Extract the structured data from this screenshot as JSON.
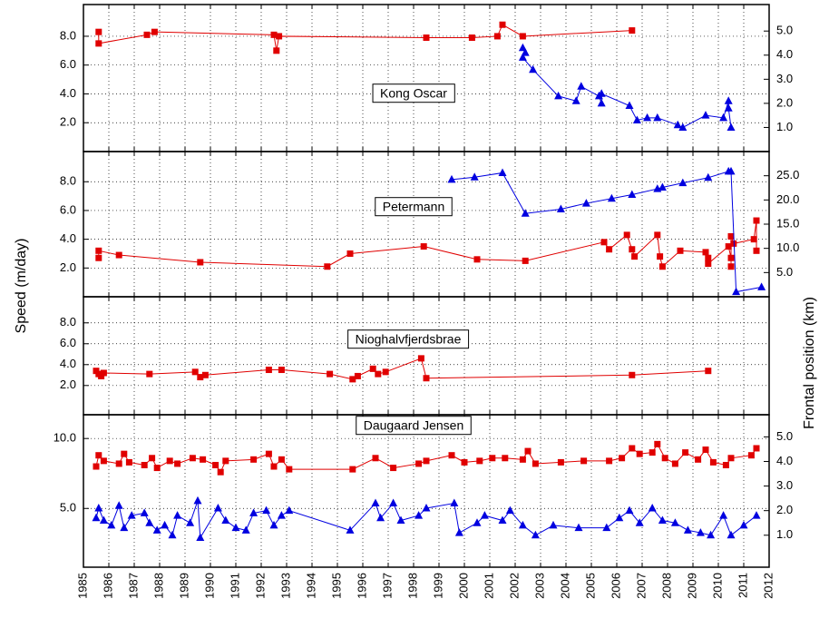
{
  "chart_data": {
    "type": "line",
    "ylabel": "Speed (m/day)",
    "y2label": "Frontal position (km)",
    "xlim": [
      1985,
      2012
    ],
    "xticks": [
      1985,
      1986,
      1987,
      1988,
      1989,
      1990,
      1991,
      1992,
      1993,
      1994,
      1995,
      1996,
      1997,
      1998,
      1999,
      2000,
      2001,
      2002,
      2003,
      2004,
      2005,
      2006,
      2007,
      2008,
      2009,
      2010,
      2011,
      2012
    ],
    "grid": true,
    "panels": [
      {
        "label": "Kong Oscar",
        "ylim": [
          0,
          10.2
        ],
        "yticks": [
          {
            "value": 2,
            "label": "2.0"
          },
          {
            "value": 4,
            "label": "4.0"
          },
          {
            "value": 6,
            "label": "6.0"
          },
          {
            "value": 8,
            "label": "8.0"
          }
        ],
        "y2lim": [
          0,
          6.1
        ],
        "y2ticks": [
          {
            "value": 1,
            "label": "1.0"
          },
          {
            "value": 2,
            "label": "2.0"
          },
          {
            "value": 3,
            "label": "3.0"
          },
          {
            "value": 4,
            "label": "4.0"
          },
          {
            "value": 5,
            "label": "5.0"
          }
        ],
        "series": [
          {
            "color": "#e00000",
            "marker": "square",
            "x": [
              1985.6,
              1985.6,
              1987.5,
              1987.8,
              1992.5,
              1992.6,
              1992.7,
              1998.5,
              2000.3,
              2001.3,
              2001.5,
              2002.3,
              2006.6
            ],
            "values": [
              8.3,
              7.5,
              8.1,
              8.3,
              8.1,
              7.0,
              8.0,
              7.9,
              7.9,
              8.0,
              8.8,
              8.0,
              8.4
            ]
          },
          {
            "color": "#0000e0",
            "marker": "triangle",
            "axis": "y2",
            "x": [
              2002.3,
              2002.4,
              2002.3,
              2002.7,
              2003.7,
              2004.4,
              2004.6,
              2005.3,
              2005.4,
              2005.4,
              2006.5,
              2006.8,
              2007.2,
              2007.6,
              2008.4,
              2008.6,
              2009.5,
              2010.2,
              2010.4,
              2010.4,
              2010.5
            ],
            "values": [
              4.3,
              4.1,
              3.9,
              3.4,
              2.3,
              2.1,
              2.7,
              2.3,
              2.0,
              2.4,
              1.9,
              1.3,
              1.4,
              1.4,
              1.1,
              1.0,
              1.5,
              1.4,
              2.1,
              1.8,
              1.0
            ]
          }
        ]
      },
      {
        "label": "Petermann",
        "ylim": [
          0,
          10.1
        ],
        "yticks": [
          {
            "value": 2,
            "label": "2.0"
          },
          {
            "value": 4,
            "label": "4.0"
          },
          {
            "value": 6,
            "label": "6.0"
          },
          {
            "value": 8,
            "label": "8.0"
          }
        ],
        "y2lim": [
          0,
          30
        ],
        "y2ticks": [
          {
            "value": 5,
            "label": "5.0"
          },
          {
            "value": 10,
            "label": "10.0"
          },
          {
            "value": 15,
            "label": "15.0"
          },
          {
            "value": 20,
            "label": "20.0"
          },
          {
            "value": 25,
            "label": "25.0"
          }
        ],
        "series": [
          {
            "color": "#e00000",
            "marker": "square",
            "x": [
              1985.6,
              1985.6,
              1986.4,
              1989.6,
              1994.6,
              1995.5,
              1998.4,
              2000.5,
              2002.4,
              2005.5,
              2005.7,
              2006.4,
              2006.6,
              2006.7,
              2007.6,
              2007.7,
              2007.8,
              2008.5,
              2009.5,
              2009.6,
              2009.6,
              2010.4,
              2010.5,
              2010.5,
              2010.5,
              2010.6,
              2011.4,
              2011.5,
              2011.5
            ],
            "values": [
              2.7,
              3.2,
              2.9,
              2.4,
              2.1,
              3.0,
              3.5,
              2.6,
              2.5,
              3.8,
              3.3,
              4.3,
              3.3,
              2.8,
              4.3,
              2.8,
              2.1,
              3.2,
              3.1,
              2.7,
              2.3,
              3.5,
              2.7,
              2.1,
              4.2,
              3.7,
              4.0,
              5.3,
              3.2
            ]
          },
          {
            "color": "#0000e0",
            "marker": "triangle",
            "axis": "y2",
            "x": [
              1999.5,
              2000.4,
              2001.5,
              2002.4,
              2003.8,
              2004.8,
              2005.8,
              2006.6,
              2007.6,
              2007.8,
              2008.6,
              2009.6,
              2010.4,
              2010.5,
              2010.7,
              2011.7
            ],
            "values": [
              24.2,
              24.7,
              25.6,
              17.2,
              18.1,
              19.3,
              20.3,
              21.1,
              22.3,
              22.6,
              23.5,
              24.6,
              25.9,
              25.9,
              1.0,
              2.0
            ]
          }
        ]
      },
      {
        "label": "Nioghalvfjerdsbrae",
        "ylim": [
          -0.8,
          10.5
        ],
        "yticks": [
          {
            "value": 2,
            "label": "2.0"
          },
          {
            "value": 4,
            "label": "4.0"
          },
          {
            "value": 6,
            "label": "6.0"
          },
          {
            "value": 8,
            "label": "8.0"
          }
        ],
        "series": [
          {
            "color": "#e00000",
            "marker": "square",
            "x": [
              1985.5,
              1985.6,
              1985.7,
              1985.8,
              1987.6,
              1989.4,
              1989.6,
              1989.8,
              1992.3,
              1992.8,
              1994.7,
              1995.6,
              1995.8,
              1996.4,
              1996.6,
              1996.9,
              1998.3,
              1998.5,
              2006.6,
              2009.6
            ],
            "values": [
              3.4,
              3.1,
              2.9,
              3.2,
              3.1,
              3.3,
              2.8,
              3.0,
              3.5,
              3.5,
              3.1,
              2.6,
              2.9,
              3.6,
              3.1,
              3.3,
              4.6,
              2.7,
              3.0,
              3.4
            ]
          }
        ]
      },
      {
        "label": "Daugaard Jensen",
        "ylim": [
          0.8,
          11.7
        ],
        "yticks": [
          {
            "value": 5,
            "label": "5.0"
          },
          {
            "value": 10,
            "label": "10.0"
          }
        ],
        "y2lim": [
          -0.3,
          5.9
        ],
        "y2ticks": [
          {
            "value": 1,
            "label": "1.0"
          },
          {
            "value": 2,
            "label": "2.0"
          },
          {
            "value": 3,
            "label": "3.0"
          },
          {
            "value": 4,
            "label": "4.0"
          },
          {
            "value": 5,
            "label": "5.0"
          }
        ],
        "series": [
          {
            "color": "#e00000",
            "marker": "square",
            "x": [
              1985.5,
              1985.6,
              1985.8,
              1986.4,
              1986.6,
              1986.8,
              1987.4,
              1987.7,
              1987.9,
              1988.4,
              1988.7,
              1989.3,
              1989.7,
              1990.2,
              1990.4,
              1990.6,
              1991.7,
              1992.3,
              1992.5,
              1992.8,
              1993.1,
              1995.6,
              1996.5,
              1997.2,
              1998.2,
              1998.5,
              1999.5,
              2000.0,
              2000.6,
              2001.1,
              2001.6,
              2002.3,
              2002.5,
              2002.8,
              2003.8,
              2004.7,
              2005.7,
              2006.2,
              2006.6,
              2006.9,
              2007.4,
              2007.6,
              2007.9,
              2008.3,
              2008.7,
              2009.2,
              2009.5,
              2009.8,
              2010.3,
              2010.5,
              2011.3,
              2011.5
            ],
            "values": [
              8.0,
              8.8,
              8.4,
              8.2,
              8.9,
              8.3,
              8.1,
              8.6,
              7.9,
              8.4,
              8.2,
              8.6,
              8.5,
              8.1,
              7.6,
              8.4,
              8.5,
              8.9,
              8.0,
              8.5,
              7.8,
              7.8,
              8.6,
              7.9,
              8.2,
              8.4,
              8.8,
              8.3,
              8.4,
              8.6,
              8.6,
              8.5,
              9.1,
              8.2,
              8.3,
              8.4,
              8.4,
              8.6,
              9.3,
              8.9,
              9.0,
              9.6,
              8.6,
              8.2,
              9.0,
              8.5,
              9.2,
              8.3,
              8.1,
              8.6,
              8.8,
              9.3
            ]
          },
          {
            "color": "#0000e0",
            "marker": "triangle",
            "axis": "y2",
            "x": [
              1985.5,
              1985.6,
              1985.8,
              1986.1,
              1986.4,
              1986.6,
              1986.9,
              1987.4,
              1987.6,
              1987.9,
              1988.2,
              1988.5,
              1988.7,
              1989.2,
              1989.5,
              1989.6,
              1990.3,
              1990.6,
              1991.0,
              1991.4,
              1991.7,
              1992.2,
              1992.5,
              1992.8,
              1993.1,
              1995.5,
              1996.5,
              1996.7,
              1997.2,
              1997.5,
              1998.2,
              1998.5,
              1999.6,
              1999.8,
              2000.5,
              2000.8,
              2001.5,
              2001.8,
              2002.3,
              2002.8,
              2003.5,
              2004.5,
              2005.6,
              2006.1,
              2006.5,
              2006.9,
              2007.4,
              2007.8,
              2008.3,
              2008.8,
              2009.3,
              2009.7,
              2010.2,
              2010.5,
              2011.0,
              2011.5
            ],
            "values": [
              1.7,
              2.1,
              1.6,
              1.4,
              2.2,
              1.3,
              1.8,
              1.9,
              1.5,
              1.2,
              1.4,
              1.0,
              1.8,
              1.5,
              2.4,
              0.9,
              2.1,
              1.6,
              1.3,
              1.2,
              1.9,
              2.0,
              1.4,
              1.8,
              2.0,
              1.2,
              2.3,
              1.7,
              2.3,
              1.6,
              1.8,
              2.1,
              2.3,
              1.1,
              1.5,
              1.8,
              1.6,
              2.0,
              1.4,
              1.0,
              1.4,
              1.3,
              1.3,
              1.7,
              2.0,
              1.5,
              2.1,
              1.6,
              1.5,
              1.2,
              1.1,
              1.0,
              1.8,
              1.0,
              1.4,
              1.8
            ]
          }
        ]
      }
    ]
  }
}
